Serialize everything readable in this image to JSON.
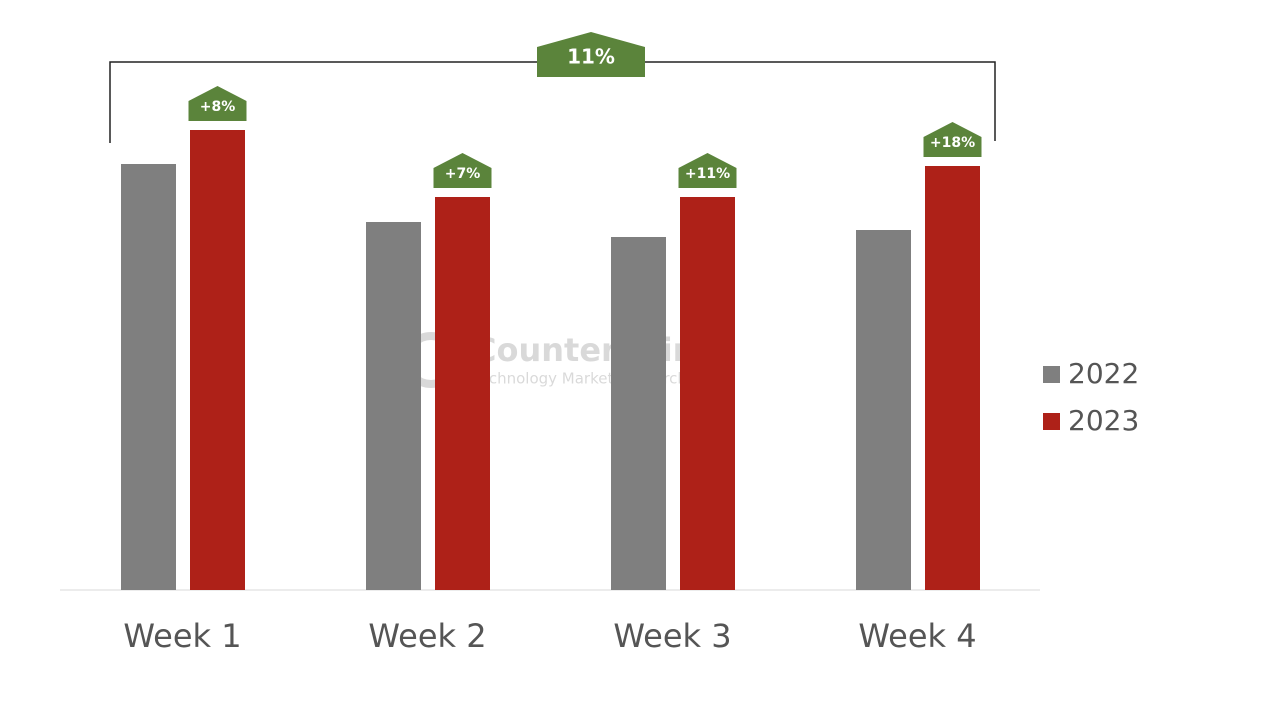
{
  "chart_data": {
    "type": "bar",
    "categories": [
      "Week 1",
      "Week 2",
      "Week 3",
      "Week 4"
    ],
    "series": [
      {
        "name": "2022",
        "color": "#7f7f7f",
        "values": [
          426,
          368,
          353,
          360
        ]
      },
      {
        "name": "2023",
        "color": "#ae2118",
        "values": [
          460,
          393,
          393,
          424
        ]
      }
    ],
    "annotations": [
      "+8%",
      "+7%",
      "+11%",
      "+18%"
    ],
    "overall_annotation": "11%",
    "annotation_color": "#5b843b",
    "ylim": [
      0,
      460
    ],
    "legend": "right",
    "watermark": {
      "name": "Counterpoint",
      "tagline": "Technology Market Research"
    }
  }
}
